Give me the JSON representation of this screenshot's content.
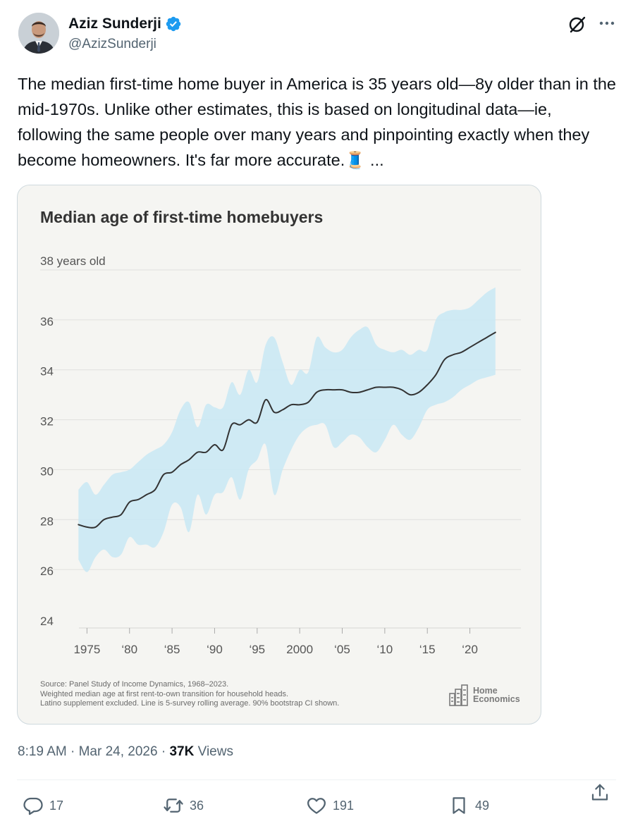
{
  "author": {
    "name": "Aziz Sunderji",
    "handle": "@AzizSunderji",
    "verified": true
  },
  "icons": {
    "verified": "verified-badge-icon",
    "grok": "grok-icon",
    "more": "more-icon",
    "reply": "reply-icon",
    "repost": "repost-icon",
    "like": "like-icon",
    "bookmark": "bookmark-icon",
    "share": "share-icon",
    "thread": "spool-of-thread-emoji"
  },
  "tweet": {
    "text": "The median first-time home buyer in America is 35 years old—8y older than in the mid-1970s. Unlike other estimates, this is based on longitudinal data—ie, following the same people over many years and pinpointing exactly when they become homeowners. It's far more accurate.",
    "emoji": "🧵",
    "ellipsis": "..."
  },
  "chart_data": {
    "type": "line",
    "title": "Median age of first-time homebuyers",
    "ylabel_top": "38 years old",
    "y_ticks": [
      "24",
      "26",
      "28",
      "30",
      "32",
      "34",
      "36"
    ],
    "x_ticks": [
      "1975",
      "‘80",
      "‘85",
      "‘90",
      "‘95",
      "2000",
      "‘05",
      "‘10",
      "‘15",
      "‘20"
    ],
    "x_tick_values": [
      1975,
      1980,
      1985,
      1990,
      1995,
      2000,
      2005,
      2010,
      2015,
      2020
    ],
    "xlim": [
      1969.5,
      2026
    ],
    "ylim": [
      24,
      38
    ],
    "series": [
      {
        "name": "Median age",
        "x": [
          1974,
          1975,
          1976,
          1977,
          1978,
          1979,
          1980,
          1981,
          1982,
          1983,
          1984,
          1985,
          1986,
          1987,
          1988,
          1989,
          1990,
          1991,
          1992,
          1993,
          1994,
          1995,
          1996,
          1997,
          1998,
          1999,
          2000,
          2001,
          2002,
          2003,
          2004,
          2005,
          2006,
          2007,
          2008,
          2009,
          2010,
          2011,
          2012,
          2013,
          2014,
          2015,
          2016,
          2017,
          2018,
          2019,
          2020,
          2021,
          2022,
          2023
        ],
        "y": [
          27.8,
          27.7,
          27.7,
          28.0,
          28.1,
          28.2,
          28.7,
          28.8,
          29.0,
          29.2,
          29.8,
          29.9,
          30.2,
          30.4,
          30.7,
          30.7,
          31.0,
          30.8,
          31.8,
          31.8,
          32.0,
          31.9,
          32.8,
          32.3,
          32.4,
          32.6,
          32.6,
          32.7,
          33.1,
          33.2,
          33.2,
          33.2,
          33.1,
          33.1,
          33.2,
          33.3,
          33.3,
          33.3,
          33.2,
          33.0,
          33.1,
          33.4,
          33.8,
          34.4,
          34.6,
          34.7,
          34.9,
          35.1,
          35.3,
          35.5
        ]
      }
    ],
    "ci": {
      "name": "90% bootstrap CI",
      "x": [
        1974,
        1975,
        1976,
        1977,
        1978,
        1979,
        1980,
        1981,
        1982,
        1983,
        1984,
        1985,
        1986,
        1987,
        1988,
        1989,
        1990,
        1991,
        1992,
        1993,
        1994,
        1995,
        1996,
        1997,
        1998,
        1999,
        2000,
        2001,
        2002,
        2003,
        2004,
        2005,
        2006,
        2007,
        2008,
        2009,
        2010,
        2011,
        2012,
        2013,
        2014,
        2015,
        2016,
        2017,
        2018,
        2019,
        2020,
        2021,
        2022,
        2023
      ],
      "upper": [
        29.2,
        29.5,
        29.0,
        29.4,
        29.8,
        29.9,
        30.0,
        30.3,
        30.6,
        30.8,
        31.0,
        31.5,
        32.4,
        32.7,
        31.7,
        32.6,
        32.5,
        32.5,
        33.5,
        33.0,
        34.0,
        33.5,
        35.0,
        35.3,
        34.3,
        33.4,
        34.0,
        33.9,
        35.3,
        34.9,
        34.7,
        34.8,
        35.3,
        35.6,
        35.7,
        35.0,
        34.8,
        34.7,
        34.8,
        34.6,
        34.8,
        34.8,
        36.0,
        36.3,
        36.4,
        36.4,
        36.5,
        36.8,
        37.1,
        37.3
      ],
      "lower": [
        26.4,
        25.9,
        26.5,
        26.8,
        26.5,
        26.6,
        27.3,
        27.0,
        27.0,
        26.9,
        27.5,
        28.6,
        28.5,
        27.5,
        29.0,
        28.2,
        29.0,
        29.1,
        29.7,
        28.8,
        30.0,
        30.4,
        31.0,
        29.0,
        30.0,
        30.8,
        31.4,
        31.7,
        31.8,
        31.8,
        30.9,
        31.1,
        31.4,
        31.3,
        30.9,
        30.7,
        31.2,
        31.8,
        31.4,
        31.2,
        31.7,
        32.4,
        32.6,
        32.7,
        32.9,
        33.2,
        33.4,
        33.6,
        33.7,
        33.8
      ]
    },
    "source_lines": [
      "Source: Panel Study of Income Dynamics, 1968–2023.",
      "Weighted median age at first rent-to-own transition for household heads.",
      "Latino supplement excluded. Line is 5-survey rolling average. 90% bootstrap CI shown."
    ],
    "logo_lines": [
      "Home",
      "Economics"
    ],
    "colors": {
      "line": "#333333",
      "band": "#c8e8f4",
      "grid": "#e0e0de",
      "tick": "#555555"
    }
  },
  "meta": {
    "time": "8:19 AM",
    "date": "Mar 24, 2026",
    "sep": "·",
    "views_count": "37K",
    "views_label": "Views"
  },
  "actions": {
    "replies": "17",
    "reposts": "36",
    "likes": "191",
    "bookmarks": "49"
  }
}
